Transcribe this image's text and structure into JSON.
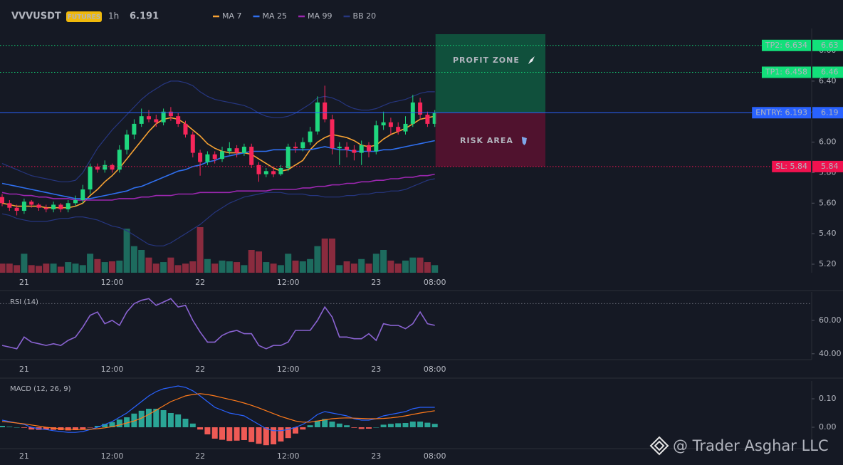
{
  "chart_data": [
    {
      "type": "candlestick",
      "title": "VVVUSDT",
      "badge": "FUTURES",
      "interval": "1h",
      "last_price": 6.191,
      "last_price_color": "#1fd67e",
      "categories": [
        null,
        null,
        null,
        "21",
        null,
        null,
        null,
        null,
        null,
        null,
        null,
        null,
        null,
        null,
        null,
        "12:00",
        null,
        null,
        null,
        null,
        null,
        null,
        null,
        null,
        null,
        null,
        null,
        "22",
        null,
        null,
        null,
        null,
        null,
        null,
        null,
        null,
        null,
        null,
        null,
        "12:00",
        null,
        null,
        null,
        null,
        null,
        null,
        null,
        null,
        null,
        null,
        null,
        "23",
        null,
        null,
        null,
        null,
        null,
        null,
        null,
        "08:00"
      ],
      "open": [
        5.64,
        5.6,
        5.57,
        5.55,
        5.61,
        5.59,
        5.57,
        5.56,
        5.59,
        5.56,
        5.6,
        5.62,
        5.69,
        5.84,
        5.82,
        5.85,
        5.82,
        5.95,
        6.05,
        6.12,
        6.17,
        6.15,
        6.13,
        6.2,
        6.17,
        6.12,
        6.05,
        5.93,
        5.87,
        5.92,
        5.89,
        5.94,
        5.96,
        5.93,
        5.97,
        5.85,
        5.79,
        5.81,
        5.79,
        5.83,
        5.97,
        5.96,
        6.0,
        6.07,
        6.26,
        6.15,
        5.96,
        5.97,
        5.95,
        5.93,
        5.98,
        5.94,
        6.11,
        6.13,
        6.1,
        6.07,
        6.12,
        6.26,
        6.18,
        6.12
      ],
      "high": [
        5.66,
        5.62,
        5.59,
        5.63,
        5.62,
        5.6,
        5.59,
        5.61,
        5.6,
        5.62,
        5.65,
        5.72,
        5.86,
        5.86,
        5.88,
        5.86,
        5.98,
        6.08,
        6.15,
        6.22,
        6.21,
        6.18,
        6.22,
        6.23,
        6.19,
        6.14,
        6.07,
        5.95,
        5.94,
        5.94,
        5.97,
        6.0,
        5.98,
        5.99,
        5.99,
        5.87,
        5.83,
        5.84,
        5.85,
        5.99,
        6.0,
        6.03,
        6.1,
        6.3,
        6.37,
        6.18,
        6.0,
        6.0,
        5.98,
        6.01,
        6.0,
        6.14,
        6.2,
        6.16,
        6.13,
        6.17,
        6.31,
        6.29,
        6.2,
        6.21
      ],
      "low": [
        5.58,
        5.55,
        5.52,
        5.53,
        5.57,
        5.55,
        5.54,
        5.54,
        5.54,
        5.54,
        5.58,
        5.6,
        5.66,
        5.8,
        5.8,
        5.8,
        5.8,
        5.92,
        6.02,
        6.1,
        6.13,
        6.1,
        6.11,
        6.14,
        6.1,
        6.03,
        5.9,
        5.78,
        5.85,
        5.86,
        5.87,
        5.92,
        5.9,
        5.91,
        5.83,
        5.74,
        5.77,
        5.77,
        5.78,
        5.81,
        5.93,
        5.94,
        5.98,
        6.05,
        6.13,
        5.92,
        5.85,
        5.9,
        5.88,
        5.85,
        5.9,
        5.92,
        6.08,
        6.05,
        6.05,
        6.05,
        6.1,
        6.15,
        6.1,
        6.1
      ],
      "close": [
        5.6,
        5.57,
        5.55,
        5.61,
        5.59,
        5.57,
        5.56,
        5.59,
        5.56,
        5.6,
        5.62,
        5.69,
        5.84,
        5.82,
        5.85,
        5.82,
        5.95,
        6.05,
        6.12,
        6.17,
        6.15,
        6.13,
        6.2,
        6.17,
        6.12,
        6.05,
        5.93,
        5.87,
        5.92,
        5.89,
        5.94,
        5.96,
        5.93,
        5.97,
        5.85,
        5.79,
        5.81,
        5.79,
        5.83,
        5.97,
        5.96,
        6.0,
        6.07,
        6.26,
        6.15,
        5.96,
        5.97,
        5.95,
        5.93,
        5.98,
        5.94,
        6.11,
        6.13,
        6.1,
        6.07,
        6.12,
        6.26,
        6.18,
        6.12,
        6.19
      ],
      "volume": [
        12,
        12,
        10,
        25,
        10,
        9,
        12,
        12,
        8,
        14,
        12,
        10,
        25,
        18,
        14,
        15,
        16,
        58,
        35,
        30,
        20,
        12,
        14,
        20,
        10,
        12,
        15,
        60,
        18,
        12,
        16,
        15,
        14,
        10,
        30,
        28,
        14,
        12,
        10,
        25,
        16,
        15,
        18,
        35,
        45,
        45,
        10,
        15,
        12,
        18,
        12,
        25,
        30,
        16,
        12,
        16,
        20,
        20,
        14,
        10
      ],
      "up_color": "#1fd67e",
      "down_color": "#f7265a",
      "volume_up_color": "#1d6b5e",
      "volume_down_color": "#8a2b3e",
      "series": [
        {
          "name": "MA 7",
          "color": "#f7a233",
          "values": [
            5.6,
            5.59,
            5.58,
            5.58,
            5.58,
            5.58,
            5.57,
            5.57,
            5.57,
            5.57,
            5.58,
            5.6,
            5.65,
            5.69,
            5.74,
            5.78,
            5.83,
            5.89,
            5.95,
            6.01,
            6.07,
            6.12,
            6.15,
            6.16,
            6.15,
            6.12,
            6.08,
            6.04,
            5.99,
            5.96,
            5.94,
            5.93,
            5.93,
            5.93,
            5.92,
            5.89,
            5.86,
            5.83,
            5.81,
            5.82,
            5.85,
            5.88,
            5.95,
            6.0,
            6.03,
            6.05,
            6.04,
            6.03,
            6.01,
            5.98,
            5.97,
            5.98,
            6.02,
            6.05,
            6.07,
            6.09,
            6.12,
            6.15,
            6.16,
            6.17
          ]
        },
        {
          "name": "MA 25",
          "color": "#2f6fef",
          "values": [
            5.73,
            5.72,
            5.71,
            5.7,
            5.69,
            5.68,
            5.67,
            5.66,
            5.65,
            5.64,
            5.63,
            5.63,
            5.63,
            5.64,
            5.65,
            5.66,
            5.67,
            5.68,
            5.7,
            5.71,
            5.73,
            5.75,
            5.77,
            5.79,
            5.81,
            5.82,
            5.84,
            5.85,
            5.87,
            5.88,
            5.9,
            5.91,
            5.92,
            5.93,
            5.94,
            5.94,
            5.94,
            5.95,
            5.95,
            5.95,
            5.95,
            5.95,
            5.95,
            5.96,
            5.97,
            5.96,
            5.95,
            5.95,
            5.94,
            5.94,
            5.94,
            5.94,
            5.95,
            5.95,
            5.96,
            5.97,
            5.98,
            5.99,
            6.0,
            6.01
          ]
        },
        {
          "name": "MA 99",
          "color": "#9c27b0",
          "values": [
            5.67,
            5.66,
            5.66,
            5.65,
            5.65,
            5.64,
            5.64,
            5.63,
            5.63,
            5.63,
            5.62,
            5.62,
            5.62,
            5.62,
            5.62,
            5.62,
            5.63,
            5.63,
            5.63,
            5.64,
            5.64,
            5.65,
            5.65,
            5.65,
            5.66,
            5.66,
            5.66,
            5.67,
            5.67,
            5.67,
            5.67,
            5.67,
            5.68,
            5.68,
            5.68,
            5.68,
            5.68,
            5.69,
            5.69,
            5.69,
            5.69,
            5.7,
            5.7,
            5.71,
            5.71,
            5.72,
            5.72,
            5.73,
            5.73,
            5.74,
            5.74,
            5.75,
            5.75,
            5.76,
            5.76,
            5.77,
            5.77,
            5.78,
            5.78,
            5.79
          ]
        },
        {
          "name": "BB 20",
          "color": "#26367f",
          "upper": [
            5.86,
            5.84,
            5.82,
            5.8,
            5.78,
            5.77,
            5.76,
            5.75,
            5.74,
            5.74,
            5.75,
            5.8,
            5.88,
            5.96,
            6.02,
            6.08,
            6.13,
            6.18,
            6.23,
            6.28,
            6.32,
            6.35,
            6.38,
            6.4,
            6.4,
            6.39,
            6.37,
            6.33,
            6.3,
            6.28,
            6.27,
            6.26,
            6.25,
            6.24,
            6.22,
            6.19,
            6.17,
            6.16,
            6.16,
            6.17,
            6.19,
            6.22,
            6.25,
            6.29,
            6.3,
            6.29,
            6.27,
            6.24,
            6.22,
            6.21,
            6.21,
            6.22,
            6.24,
            6.26,
            6.27,
            6.28,
            6.3,
            6.32,
            6.33,
            6.33
          ],
          "lower": [
            5.53,
            5.52,
            5.5,
            5.49,
            5.48,
            5.48,
            5.48,
            5.49,
            5.5,
            5.5,
            5.51,
            5.51,
            5.5,
            5.49,
            5.47,
            5.45,
            5.44,
            5.42,
            5.39,
            5.36,
            5.33,
            5.32,
            5.32,
            5.34,
            5.37,
            5.4,
            5.43,
            5.46,
            5.5,
            5.54,
            5.57,
            5.6,
            5.62,
            5.64,
            5.65,
            5.66,
            5.67,
            5.67,
            5.67,
            5.66,
            5.66,
            5.66,
            5.65,
            5.65,
            5.64,
            5.64,
            5.64,
            5.65,
            5.65,
            5.66,
            5.66,
            5.67,
            5.67,
            5.68,
            5.68,
            5.69,
            5.71,
            5.73,
            5.75,
            5.76
          ]
        }
      ],
      "ylim": [
        5.144,
        6.745
      ],
      "yticks": [
        {
          "value": 5.2,
          "label": "5.20"
        },
        {
          "value": 5.4,
          "label": "5.40"
        },
        {
          "value": 5.6,
          "label": "5.60"
        },
        {
          "value": 5.8,
          "label": "5.80"
        },
        {
          "value": 6.0,
          "label": "6.00"
        },
        {
          "value": 6.2,
          "label": "6.20"
        },
        {
          "value": 6.4,
          "label": "6.40"
        },
        {
          "value": 6.6,
          "label": "6.60"
        }
      ],
      "levels": [
        {
          "label": "TP2: 6.634",
          "value": 6.634,
          "axis_label": "6.63",
          "color": "#12e07a",
          "text_color": "#0b0e14",
          "dashed": true
        },
        {
          "label": "TP1: 6.458",
          "value": 6.458,
          "axis_label": "6.46",
          "color": "#12e07a",
          "text_color": "#0b0e14",
          "dashed": true
        },
        {
          "label": "ENTRY: 6.193",
          "value": 6.193,
          "axis_label": "6.19",
          "color": "#2962ff",
          "text_color": "#ffffff",
          "dashed": false
        },
        {
          "label": "SL: 5.84",
          "value": 5.84,
          "axis_label": "5.84",
          "color": "#f0124f",
          "text_color": "#ffffff",
          "dashed": true
        }
      ],
      "zones": [
        {
          "label": "PROFIT ZONE",
          "color": "#0f5a41",
          "text_color": "#22d27c"
        },
        {
          "label": "RISK AREA",
          "color": "#5a1230",
          "text_color": "#f0406e"
        }
      ],
      "watermark": "@ Trader Asghar LLC"
    },
    {
      "type": "line",
      "title": "RSI (14)",
      "color": "#8a63d2",
      "categories": [
        null,
        null,
        null,
        "21",
        null,
        null,
        null,
        null,
        null,
        null,
        null,
        null,
        null,
        null,
        null,
        "12:00",
        null,
        null,
        null,
        null,
        null,
        null,
        null,
        null,
        null,
        null,
        null,
        "22",
        null,
        null,
        null,
        null,
        null,
        null,
        null,
        null,
        null,
        null,
        null,
        "12:00",
        null,
        null,
        null,
        null,
        null,
        null,
        null,
        null,
        null,
        null,
        null,
        "23",
        null,
        null,
        null,
        null,
        null,
        null,
        null,
        "08:00"
      ],
      "values": [
        45,
        44,
        43,
        50,
        47,
        46,
        45,
        46,
        45,
        48,
        50,
        56,
        63,
        65,
        58,
        60,
        57,
        65,
        70,
        72,
        73,
        69,
        71,
        73,
        68,
        69,
        60,
        53,
        47,
        47,
        51,
        53,
        54,
        52,
        52,
        45,
        43,
        45,
        45,
        47,
        54,
        54,
        54,
        60,
        68,
        62,
        50,
        50,
        49,
        49,
        52,
        48,
        58,
        57,
        57,
        55,
        58,
        65,
        58,
        57
      ],
      "hlines": [
        70
      ],
      "ylim": [
        36.5,
        77
      ],
      "yticks": [
        {
          "value": 40,
          "label": "40.00"
        },
        {
          "value": 60,
          "label": "60.00"
        }
      ]
    },
    {
      "type": "macd",
      "title": "MACD (12, 26, 9)",
      "macd_color": "#2962ff",
      "signal_color": "#ff7a1a",
      "hist_up_color": "#2aa596",
      "hist_down_color": "#ef5a55",
      "categories": [
        null,
        null,
        null,
        "21",
        null,
        null,
        null,
        null,
        null,
        null,
        null,
        null,
        null,
        null,
        null,
        "12:00",
        null,
        null,
        null,
        null,
        null,
        null,
        null,
        null,
        null,
        null,
        null,
        "22",
        null,
        null,
        null,
        null,
        null,
        null,
        null,
        null,
        null,
        null,
        null,
        "12:00",
        null,
        null,
        null,
        null,
        null,
        null,
        null,
        null,
        null,
        null,
        null,
        "23",
        null,
        null,
        null,
        null,
        null,
        null,
        null,
        "08:00"
      ],
      "macd": [
        0.025,
        0.02,
        0.015,
        0.01,
        0,
        -0.005,
        -0.008,
        -0.012,
        -0.015,
        -0.018,
        -0.018,
        -0.015,
        -0.008,
        0,
        0.01,
        0.02,
        0.035,
        0.05,
        0.07,
        0.09,
        0.11,
        0.125,
        0.135,
        0.14,
        0.145,
        0.14,
        0.128,
        0.11,
        0.09,
        0.07,
        0.06,
        0.05,
        0.045,
        0.04,
        0.025,
        0.01,
        -0.005,
        -0.012,
        -0.012,
        -0.008,
        0,
        0.01,
        0.025,
        0.045,
        0.055,
        0.05,
        0.045,
        0.04,
        0.03,
        0.025,
        0.025,
        0.03,
        0.04,
        0.045,
        0.05,
        0.055,
        0.065,
        0.07,
        0.07,
        0.07
      ],
      "signal": [
        0.02,
        0.018,
        0.015,
        0.012,
        0.008,
        0.004,
        0,
        -0.003,
        -0.005,
        -0.007,
        -0.008,
        -0.008,
        -0.007,
        -0.005,
        -0.002,
        0.002,
        0.008,
        0.015,
        0.022,
        0.032,
        0.045,
        0.06,
        0.075,
        0.09,
        0.1,
        0.11,
        0.115,
        0.118,
        0.115,
        0.11,
        0.104,
        0.098,
        0.092,
        0.085,
        0.077,
        0.068,
        0.058,
        0.048,
        0.038,
        0.03,
        0.022,
        0.018,
        0.018,
        0.022,
        0.026,
        0.03,
        0.032,
        0.033,
        0.032,
        0.031,
        0.03,
        0.03,
        0.031,
        0.033,
        0.036,
        0.04,
        0.045,
        0.05,
        0.054,
        0.058
      ],
      "histogram": [
        0.005,
        0.002,
        0,
        -0.002,
        -0.008,
        -0.009,
        -0.008,
        -0.009,
        -0.01,
        -0.011,
        -0.01,
        -0.007,
        -0.001,
        0.005,
        0.012,
        0.018,
        0.027,
        0.035,
        0.048,
        0.058,
        0.065,
        0.065,
        0.06,
        0.05,
        0.045,
        0.03,
        0.013,
        -0.008,
        -0.025,
        -0.04,
        -0.044,
        -0.048,
        -0.047,
        -0.045,
        -0.052,
        -0.058,
        -0.063,
        -0.06,
        -0.05,
        -0.038,
        -0.022,
        -0.008,
        0.007,
        0.023,
        0.029,
        0.02,
        0.013,
        0.007,
        -0.002,
        -0.006,
        -0.005,
        0,
        0.009,
        0.012,
        0.014,
        0.015,
        0.02,
        0.02,
        0.016,
        0.012
      ],
      "ylim": [
        -0.075,
        0.1625
      ],
      "yticks": [
        {
          "value": 0,
          "label": "0.00"
        },
        {
          "value": 0.1,
          "label": "0.10"
        }
      ]
    }
  ]
}
